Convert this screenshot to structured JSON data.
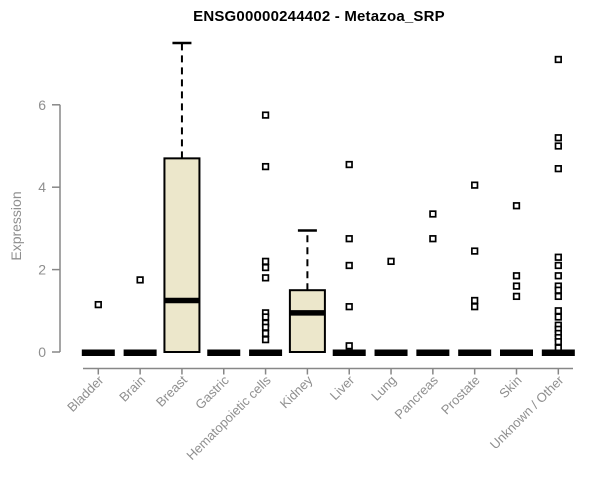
{
  "chart_data": {
    "type": "boxplot",
    "title": "ENSG00000244402 - Metazoa_SRP",
    "ylabel": "Expression",
    "xlabel": "",
    "ylim": [
      0,
      7.6
    ],
    "yticks": [
      0,
      2,
      4,
      6
    ],
    "grid": false,
    "legend": "none",
    "categories": [
      "Bladder",
      "Brain",
      "Breast",
      "Gastric",
      "Hematopoietic cells",
      "Kidney",
      "Liver",
      "Lung",
      "Pancreas",
      "Prostate",
      "Skin",
      "Unknown / Other"
    ],
    "boxes": [
      {
        "category": "Bladder",
        "q1": 0,
        "median": 0,
        "q3": 0,
        "whisker_low": 0,
        "whisker_high": 0,
        "outliers": [
          1.15
        ]
      },
      {
        "category": "Brain",
        "q1": 0,
        "median": 0,
        "q3": 0,
        "whisker_low": 0,
        "whisker_high": 0,
        "outliers": [
          1.75
        ]
      },
      {
        "category": "Breast",
        "q1": 0,
        "median": 1.25,
        "q3": 4.7,
        "whisker_low": 0,
        "whisker_high": 7.5,
        "outliers": []
      },
      {
        "category": "Gastric",
        "q1": 0,
        "median": 0,
        "q3": 0,
        "whisker_low": 0,
        "whisker_high": 0,
        "outliers": []
      },
      {
        "category": "Hematopoietic cells",
        "q1": 0,
        "median": 0,
        "q3": 0,
        "whisker_low": 0,
        "whisker_high": 0,
        "outliers": [
          5.75,
          4.5,
          2.2,
          2.05,
          1.8,
          0.95,
          0.85,
          0.7,
          0.6,
          0.45,
          0.3
        ]
      },
      {
        "category": "Kidney",
        "q1": 0,
        "median": 0.95,
        "q3": 1.5,
        "whisker_low": 0,
        "whisker_high": 2.95,
        "outliers": []
      },
      {
        "category": "Liver",
        "q1": 0,
        "median": 0,
        "q3": 0,
        "whisker_low": 0,
        "whisker_high": 0,
        "outliers": [
          4.55,
          2.75,
          2.1,
          1.1,
          0.15
        ]
      },
      {
        "category": "Lung",
        "q1": 0,
        "median": 0,
        "q3": 0,
        "whisker_low": 0,
        "whisker_high": 0,
        "outliers": [
          2.2
        ]
      },
      {
        "category": "Pancreas",
        "q1": 0,
        "median": 0,
        "q3": 0,
        "whisker_low": 0,
        "whisker_high": 0,
        "outliers": [
          3.35,
          2.75
        ]
      },
      {
        "category": "Prostate",
        "q1": 0,
        "median": 0,
        "q3": 0,
        "whisker_low": 0,
        "whisker_high": 0,
        "outliers": [
          4.05,
          2.45,
          1.25,
          1.1
        ]
      },
      {
        "category": "Skin",
        "q1": 0,
        "median": 0,
        "q3": 0,
        "whisker_low": 0,
        "whisker_high": 0,
        "outliers": [
          3.55,
          1.85,
          1.6,
          1.35
        ]
      },
      {
        "category": "Unknown / Other",
        "q1": 0,
        "median": 0,
        "q3": 0,
        "whisker_low": 0,
        "whisker_high": 0,
        "outliers": [
          7.1,
          5.2,
          5.0,
          4.45,
          2.3,
          2.1,
          1.85,
          1.6,
          1.5,
          1.35,
          1.0,
          0.85,
          0.65,
          0.55,
          0.45,
          0.35,
          0.25,
          0.1
        ]
      }
    ],
    "colors": {
      "box_fill": "#ece7cb",
      "box_stroke": "#000000",
      "median": "#000000",
      "outlier_stroke": "#000000",
      "axis": "#878787",
      "tick_label": "#8f8f8f",
      "title": "#000000"
    }
  }
}
